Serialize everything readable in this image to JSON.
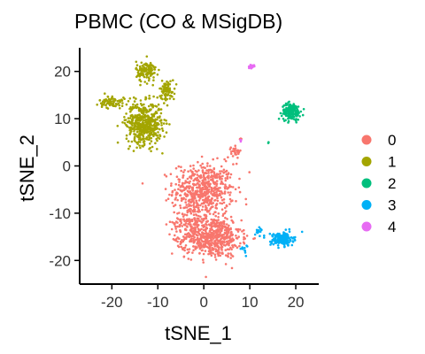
{
  "chart_data": {
    "type": "scatter",
    "title": "PBMC (CO & MSigDB)",
    "xlabel": "tSNE_1",
    "ylabel": "tSNE_2",
    "xlim": [
      -27,
      25
    ],
    "ylim": [
      -25,
      25
    ],
    "xticks": [
      -20,
      -10,
      0,
      10,
      20
    ],
    "yticks": [
      -20,
      -10,
      0,
      10,
      20
    ],
    "grid": false,
    "legend_position": "right",
    "series": [
      {
        "name": "0",
        "color": "#F8766D",
        "clusters": [
          {
            "center": [
              0,
              -5
            ],
            "spread": [
              6,
              5
            ],
            "n": 550
          },
          {
            "center": [
              2,
              -15
            ],
            "spread": [
              5.5,
              4
            ],
            "n": 550
          },
          {
            "center": [
              -3,
              -12
            ],
            "spread": [
              3.5,
              5
            ],
            "n": 150
          },
          {
            "center": [
              7,
              3
            ],
            "spread": [
              1,
              1
            ],
            "n": 30
          },
          {
            "center": [
              8,
              6
            ],
            "spread": [
              0.3,
              0.5
            ],
            "n": 5
          }
        ]
      },
      {
        "name": "1",
        "color": "#A3A500",
        "clusters": [
          {
            "center": [
              -13,
              9
            ],
            "spread": [
              3.5,
              4
            ],
            "n": 500
          },
          {
            "center": [
              -12.5,
              20
            ],
            "spread": [
              2,
              2
            ],
            "n": 120
          },
          {
            "center": [
              -20,
              13.5
            ],
            "spread": [
              2.5,
              1.2
            ],
            "n": 80
          },
          {
            "center": [
              -8,
              16
            ],
            "spread": [
              1.5,
              2
            ],
            "n": 80
          }
        ]
      },
      {
        "name": "2",
        "color": "#00BF7D",
        "clusters": [
          {
            "center": [
              19,
              11.5
            ],
            "spread": [
              1.8,
              1.6
            ],
            "n": 180
          },
          {
            "center": [
              14,
              5
            ],
            "spread": [
              0.3,
              0.5
            ],
            "n": 3
          }
        ]
      },
      {
        "name": "3",
        "color": "#00B0F6",
        "clusters": [
          {
            "center": [
              17,
              -15.5
            ],
            "spread": [
              2.2,
              1.3
            ],
            "n": 180
          },
          {
            "center": [
              12,
              -14
            ],
            "spread": [
              0.8,
              1
            ],
            "n": 15
          },
          {
            "center": [
              9,
              -17
            ],
            "spread": [
              0.8,
              1.5
            ],
            "n": 10
          }
        ]
      },
      {
        "name": "4",
        "color": "#E76BF3",
        "clusters": [
          {
            "center": [
              10.5,
              21
            ],
            "spread": [
              0.4,
              0.3
            ],
            "n": 25
          },
          {
            "center": [
              8,
              5.5
            ],
            "spread": [
              0.3,
              0.4
            ],
            "n": 3
          }
        ]
      }
    ]
  }
}
